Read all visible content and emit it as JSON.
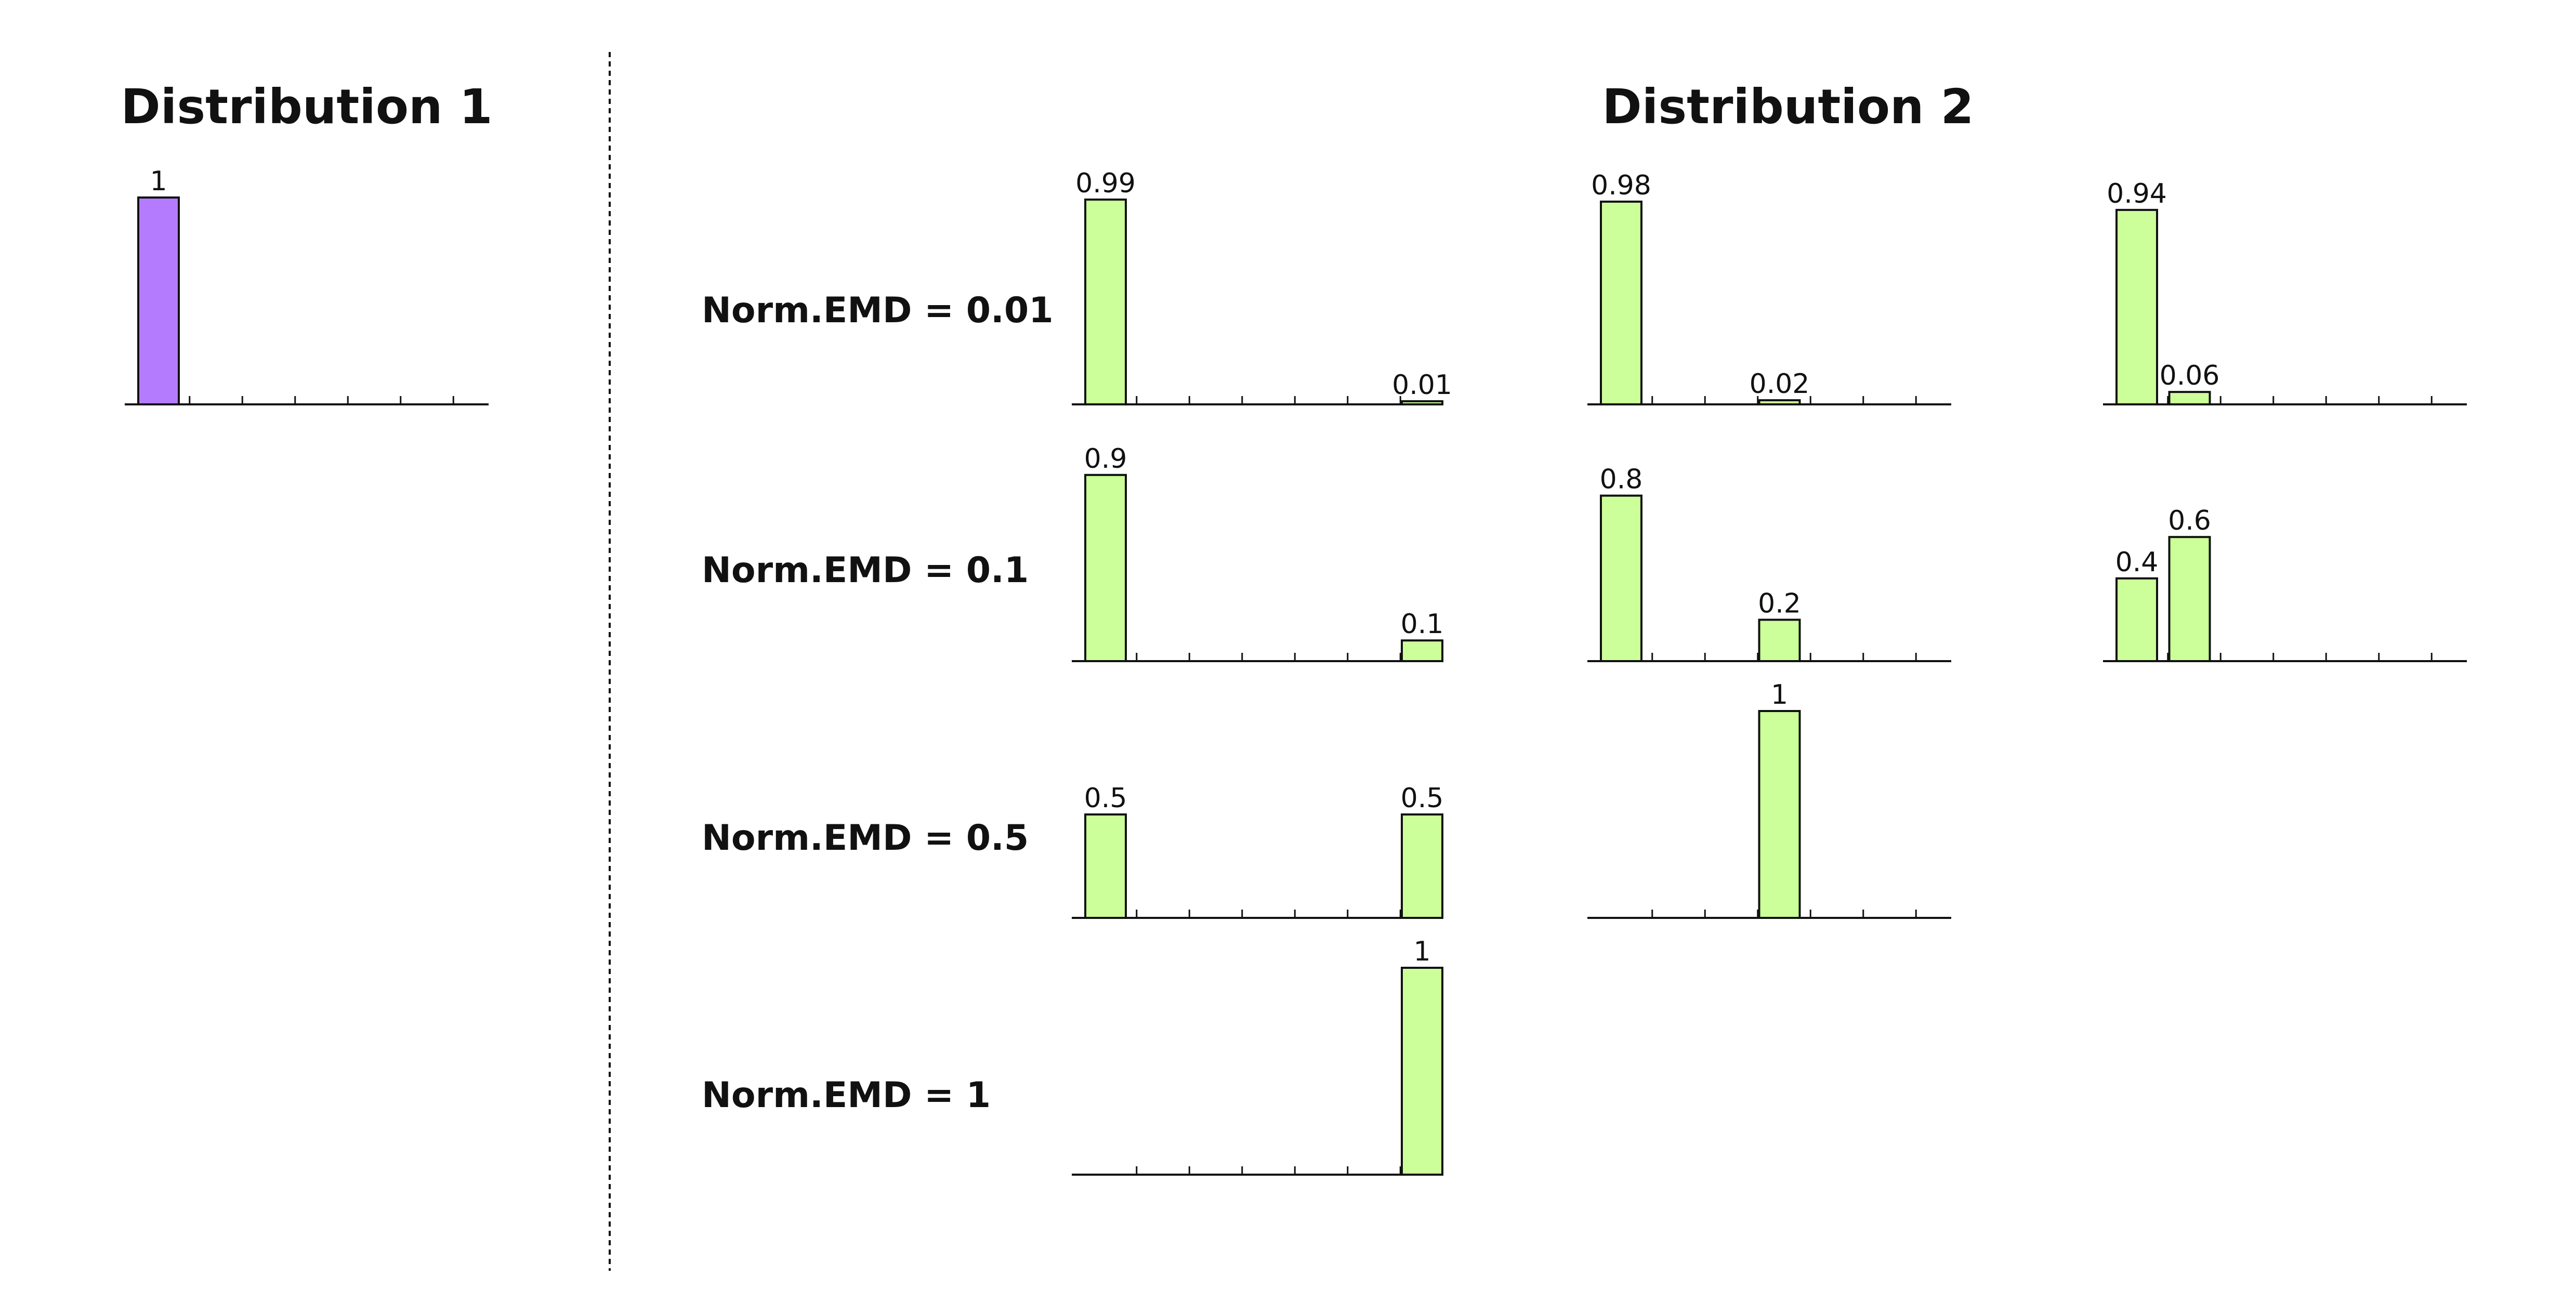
{
  "titles": {
    "dist1": "Distribution 1",
    "dist2": "Distribution 2"
  },
  "colors": {
    "dist1_bar": "#b57bff",
    "dist2_bar": "#ccff99",
    "stroke": "#111111"
  },
  "rows": [
    {
      "label": "Norm.EMD = 0.01"
    },
    {
      "label": "Norm.EMD = 0.1"
    },
    {
      "label": "Norm.EMD = 0.5"
    },
    {
      "label": "Norm.EMD = 1"
    }
  ],
  "chart_data": [
    {
      "type": "bar",
      "group": "Distribution 1",
      "bins": 7,
      "values": [
        1,
        0,
        0,
        0,
        0,
        0,
        0
      ],
      "labels": [
        "1",
        "",
        "",
        "",
        "",
        "",
        ""
      ]
    },
    {
      "type": "bar",
      "group": "Distribution 2",
      "row": "Norm.EMD = 0.01",
      "bins": 7,
      "values": [
        0.99,
        0,
        0,
        0,
        0,
        0,
        0.01
      ],
      "labels": [
        "0.99",
        "",
        "",
        "",
        "",
        "",
        "0.01"
      ]
    },
    {
      "type": "bar",
      "group": "Distribution 2",
      "row": "Norm.EMD = 0.01",
      "bins": 7,
      "values": [
        0.98,
        0,
        0,
        0.02,
        0,
        0,
        0
      ],
      "labels": [
        "0.98",
        "",
        "",
        "0.02",
        "",
        "",
        ""
      ]
    },
    {
      "type": "bar",
      "group": "Distribution 2",
      "row": "Norm.EMD = 0.01",
      "bins": 7,
      "values": [
        0.94,
        0.06,
        0,
        0,
        0,
        0,
        0
      ],
      "labels": [
        "0.94",
        "0.06",
        "",
        "",
        "",
        "",
        ""
      ]
    },
    {
      "type": "bar",
      "group": "Distribution 2",
      "row": "Norm.EMD = 0.1",
      "bins": 7,
      "values": [
        0.9,
        0,
        0,
        0,
        0,
        0,
        0.1
      ],
      "labels": [
        "0.9",
        "",
        "",
        "",
        "",
        "",
        "0.1"
      ]
    },
    {
      "type": "bar",
      "group": "Distribution 2",
      "row": "Norm.EMD = 0.1",
      "bins": 7,
      "values": [
        0.8,
        0,
        0,
        0.2,
        0,
        0,
        0
      ],
      "labels": [
        "0.8",
        "",
        "",
        "0.2",
        "",
        "",
        ""
      ]
    },
    {
      "type": "bar",
      "group": "Distribution 2",
      "row": "Norm.EMD = 0.1",
      "bins": 7,
      "values": [
        0.4,
        0.6,
        0,
        0,
        0,
        0,
        0
      ],
      "labels": [
        "0.4",
        "0.6",
        "",
        "",
        "",
        "",
        ""
      ]
    },
    {
      "type": "bar",
      "group": "Distribution 2",
      "row": "Norm.EMD = 0.5",
      "bins": 7,
      "values": [
        0.5,
        0,
        0,
        0,
        0,
        0,
        0.5
      ],
      "labels": [
        "0.5",
        "",
        "",
        "",
        "",
        "",
        "0.5"
      ]
    },
    {
      "type": "bar",
      "group": "Distribution 2",
      "row": "Norm.EMD = 0.5",
      "bins": 7,
      "values": [
        0,
        0,
        0,
        1,
        0,
        0,
        0
      ],
      "labels": [
        "",
        "",
        "",
        "1",
        "",
        "",
        ""
      ]
    },
    {
      "type": "bar",
      "group": "Distribution 2",
      "row": "Norm.EMD = 1",
      "bins": 7,
      "values": [
        0,
        0,
        0,
        0,
        0,
        0,
        1
      ],
      "labels": [
        "",
        "",
        "",
        "",
        "",
        "",
        "1"
      ]
    }
  ]
}
